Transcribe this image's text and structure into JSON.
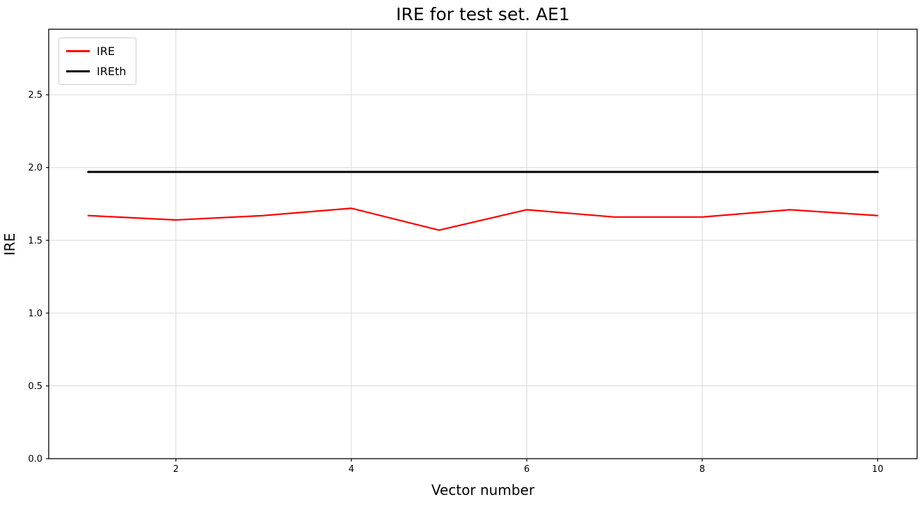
{
  "chart_data": {
    "type": "line",
    "title": "IRE for test set. AE1",
    "xlabel": "Vector number",
    "ylabel": "IRE",
    "x": [
      1,
      2,
      3,
      4,
      5,
      6,
      7,
      8,
      9,
      10
    ],
    "series": [
      {
        "name": "IRE",
        "color": "#ff0000",
        "linewidth": 2.2,
        "values": [
          1.67,
          1.64,
          1.67,
          1.72,
          1.57,
          1.71,
          1.66,
          1.66,
          1.71,
          1.67
        ]
      },
      {
        "name": "IREth",
        "color": "#000000",
        "linewidth": 3,
        "values": [
          1.97,
          1.97,
          1.97,
          1.97,
          1.97,
          1.97,
          1.97,
          1.97,
          1.97,
          1.97
        ]
      }
    ],
    "xlim": [
      0.55,
      10.45
    ],
    "ylim": [
      0,
      2.95
    ],
    "xticks": [
      2,
      4,
      6,
      8,
      10
    ],
    "yticks": [
      0.0,
      0.5,
      1.0,
      1.5,
      2.0,
      2.5
    ],
    "grid": true,
    "grid_color": "#d9d9d9",
    "legend_position": "upper left",
    "axis_color": "#000000",
    "background_color": "#ffffff"
  }
}
